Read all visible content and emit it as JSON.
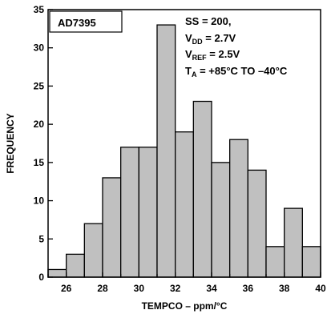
{
  "chart_data": {
    "type": "bar",
    "title": "",
    "device_label": "AD7395",
    "conditions": {
      "ss": "SS = 200,",
      "vdd": {
        "main": "V",
        "sub": "DD",
        "rest": " = 2.7V"
      },
      "vref": {
        "main": "V",
        "sub": "REF",
        "rest": " = 2.5V"
      },
      "ta": {
        "main": "T",
        "sub": "A",
        "rest": " = +85°C TO –40°C"
      }
    },
    "xlabel": "TEMPCO – ppm/°C",
    "ylabel": "FREQUENCY",
    "xlim": [
      25,
      40
    ],
    "ylim": [
      0,
      35
    ],
    "x_ticks": [
      26,
      28,
      30,
      32,
      34,
      36,
      38,
      40
    ],
    "y_ticks": [
      0,
      5,
      10,
      15,
      20,
      25,
      30,
      35
    ],
    "bin_width": 1,
    "bins": [
      25,
      26,
      27,
      28,
      29,
      30,
      31,
      32,
      33,
      34,
      35,
      36,
      37,
      38,
      39
    ],
    "values": [
      1,
      3,
      7,
      13,
      17,
      17,
      33,
      19,
      23,
      15,
      18,
      14,
      4,
      9,
      4
    ],
    "bar_color": "#c0c0c0",
    "edge_color": "#000000",
    "grid": false,
    "legend": "none"
  }
}
